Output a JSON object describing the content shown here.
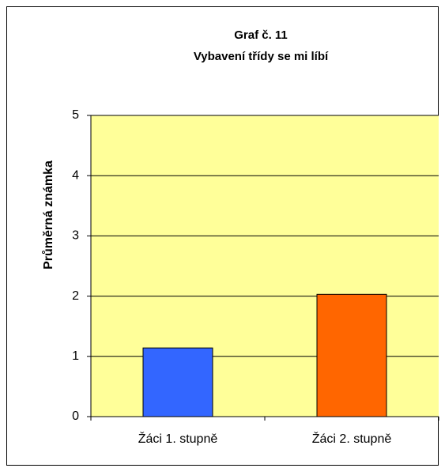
{
  "chart_data": {
    "type": "bar",
    "title": "Graf č. 11",
    "subtitle": "Vybavení třídy se mi líbí",
    "ylabel": "Průměrná známka",
    "categories": [
      "Žáci 1. stupně",
      "Žáci 2. stupně"
    ],
    "values": [
      1.14,
      2.03
    ],
    "colors": [
      "#3366ff",
      "#ff6600"
    ],
    "plot_background": "#ffff99",
    "ylim": [
      0,
      5
    ],
    "yticks": [
      0,
      1,
      2,
      3,
      4,
      5
    ],
    "grid": true
  }
}
